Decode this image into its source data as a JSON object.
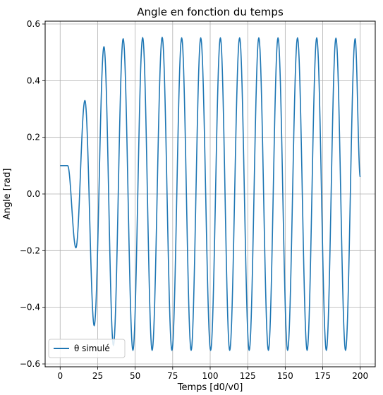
{
  "chart_data": {
    "type": "line",
    "title": "Angle en fonction du temps",
    "xlabel": "Temps [d0/v0]",
    "ylabel": "Angle [rad]",
    "xlim": [
      -10,
      210
    ],
    "ylim": [
      -0.61,
      0.61
    ],
    "xticks": [
      0,
      25,
      50,
      75,
      100,
      125,
      150,
      175,
      200
    ],
    "yticks": [
      -0.6,
      -0.4,
      -0.2,
      0.0,
      0.2,
      0.4,
      0.6
    ],
    "xtick_labels": [
      "0",
      "25",
      "50",
      "75",
      "100",
      "125",
      "150",
      "175",
      "200"
    ],
    "ytick_labels": [
      "−0.6",
      "−0.4",
      "−0.2",
      "0.0",
      "0.2",
      "0.4",
      "0.6"
    ],
    "grid": true,
    "legend_position": "lower-left",
    "series": [
      {
        "name": "θ simulé",
        "color": "#1f77b4",
        "x": [
          0,
          5,
          10.5,
          16.5,
          22.7,
          29.2,
          35.5,
          42,
          48.5,
          55,
          61.3,
          68,
          74.5,
          81,
          87.3,
          93.7,
          100.3,
          106.8,
          113,
          119.6,
          126,
          132.4,
          138.8,
          145.2,
          151.6,
          158.2,
          164.6,
          171,
          177.4,
          183.8,
          190.2,
          196.6,
          200
        ],
        "y": [
          0.1,
          0.1,
          -0.19,
          0.33,
          -0.465,
          0.52,
          -0.535,
          0.548,
          -0.552,
          0.552,
          -0.552,
          0.553,
          -0.552,
          0.551,
          -0.552,
          0.551,
          -0.552,
          0.551,
          -0.552,
          0.551,
          -0.552,
          0.551,
          -0.552,
          0.551,
          -0.552,
          0.551,
          -0.552,
          0.551,
          -0.552,
          0.55,
          -0.552,
          0.548,
          0.06
        ]
      }
    ]
  }
}
